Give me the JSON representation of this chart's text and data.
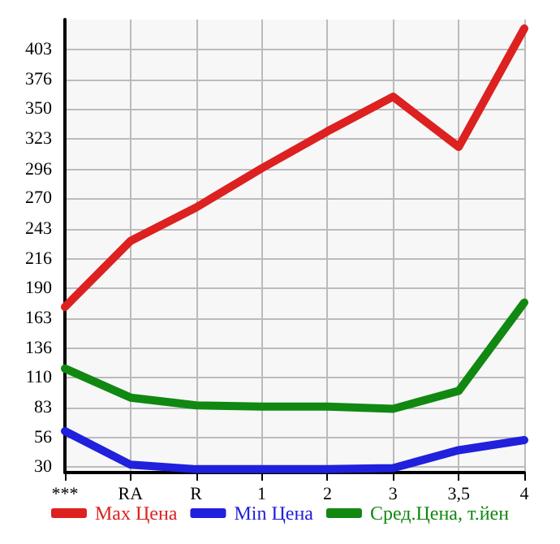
{
  "chart_data": {
    "type": "line",
    "categories": [
      "***",
      "RA",
      "R",
      "1",
      "2",
      "3",
      "3,5",
      "4"
    ],
    "series": [
      {
        "name": "Max Цена",
        "color": "#dd2020",
        "values": [
          173,
          232,
          262,
          297,
          330,
          361,
          316,
          422
        ]
      },
      {
        "name": "Min Цена",
        "color": "#2020dd",
        "values": [
          62,
          32,
          28,
          28,
          28,
          29,
          45,
          54
        ]
      },
      {
        "name": "Сред.Цена, т.йен",
        "color": "#118811",
        "values": [
          118,
          92,
          85,
          84,
          84,
          82,
          98,
          177
        ]
      }
    ],
    "ylim": [
      25,
      430
    ],
    "yticks": [
      30,
      56,
      83,
      110,
      136,
      163,
      190,
      216,
      243,
      270,
      296,
      323,
      350,
      376,
      403
    ],
    "grid": true,
    "legend": "bottom",
    "marker": "none",
    "line_style": "solid"
  }
}
